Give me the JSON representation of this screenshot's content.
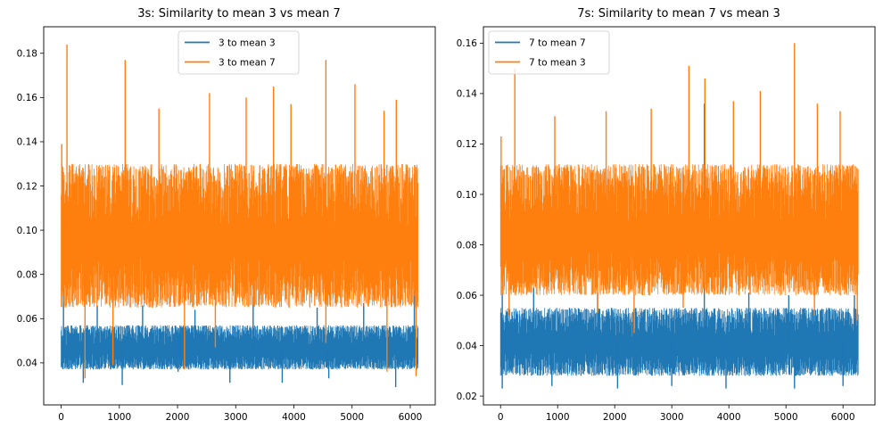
{
  "chart_data": [
    {
      "type": "line",
      "title": "3s: Similarity to mean 3 vs mean 7",
      "xlabel": "",
      "ylabel": "",
      "xlim": [
        -300,
        6430
      ],
      "ylim": [
        0.021,
        0.192
      ],
      "xticks": [
        0,
        1000,
        2000,
        3000,
        4000,
        5000,
        6000
      ],
      "xtick_labels": [
        "0",
        "1000",
        "2000",
        "3000",
        "4000",
        "5000",
        "6000"
      ],
      "yticks": [
        0.04,
        0.06,
        0.08,
        0.1,
        0.12,
        0.14,
        0.16,
        0.18
      ],
      "ytick_labels": [
        "0.04",
        "0.06",
        "0.08",
        "0.10",
        "0.12",
        "0.14",
        "0.16",
        "0.18"
      ],
      "grid": false,
      "legend_position": "upper-center",
      "n_points": 6131,
      "series": [
        {
          "name": "3 to mean 3",
          "color": "#1f77b4",
          "band": {
            "low": 0.037,
            "high": 0.057
          },
          "spikes_low": [
            [
              380,
              0.031
            ],
            [
              1050,
              0.03
            ],
            [
              2010,
              0.036
            ],
            [
              2900,
              0.031
            ],
            [
              3800,
              0.031
            ],
            [
              4600,
              0.033
            ],
            [
              5750,
              0.029
            ]
          ],
          "spikes_high": [
            [
              40,
              0.109
            ],
            [
              620,
              0.066
            ],
            [
              1400,
              0.066
            ],
            [
              2300,
              0.064
            ],
            [
              3300,
              0.07
            ],
            [
              4400,
              0.065
            ],
            [
              5200,
              0.067
            ],
            [
              6070,
              0.073
            ]
          ]
        },
        {
          "name": "3 to mean 7",
          "color": "#ff7f0e",
          "band": {
            "low": 0.065,
            "high": 0.13
          },
          "spikes_low": [
            [
              410,
              0.033
            ],
            [
              890,
              0.039
            ],
            [
              2120,
              0.037
            ],
            [
              2650,
              0.047
            ],
            [
              4550,
              0.049
            ],
            [
              5600,
              0.036
            ],
            [
              6100,
              0.034
            ]
          ],
          "spikes_high": [
            [
              10,
              0.139
            ],
            [
              100,
              0.184
            ],
            [
              1100,
              0.177
            ],
            [
              1680,
              0.155
            ],
            [
              2550,
              0.162
            ],
            [
              3180,
              0.16
            ],
            [
              3650,
              0.165
            ],
            [
              3950,
              0.157
            ],
            [
              4550,
              0.177
            ],
            [
              5050,
              0.166
            ],
            [
              5550,
              0.154
            ],
            [
              5760,
              0.159
            ]
          ]
        }
      ]
    },
    {
      "type": "line",
      "title": "7s: Similarity to mean 7 vs mean 3",
      "xlabel": "",
      "ylabel": "",
      "xlim": [
        -300,
        6560
      ],
      "ylim": [
        0.0165,
        0.1665
      ],
      "xticks": [
        0,
        1000,
        2000,
        3000,
        4000,
        5000,
        6000
      ],
      "xtick_labels": [
        "0",
        "1000",
        "2000",
        "3000",
        "4000",
        "5000",
        "6000"
      ],
      "yticks": [
        0.02,
        0.04,
        0.06,
        0.08,
        0.1,
        0.12,
        0.14,
        0.16
      ],
      "ytick_labels": [
        "0.02",
        "0.04",
        "0.06",
        "0.08",
        "0.10",
        "0.12",
        "0.14",
        "0.16"
      ],
      "grid": false,
      "legend_position": "upper-left",
      "n_points": 6265,
      "series": [
        {
          "name": "7 to mean 7",
          "color": "#1f77b4",
          "band": {
            "low": 0.028,
            "high": 0.055
          },
          "spikes_low": [
            [
              30,
              0.023
            ],
            [
              900,
              0.024
            ],
            [
              2050,
              0.023
            ],
            [
              3000,
              0.024
            ],
            [
              3950,
              0.023
            ],
            [
              5150,
              0.023
            ],
            [
              6000,
              0.024
            ]
          ],
          "spikes_high": [
            [
              30,
              0.068
            ],
            [
              580,
              0.063
            ],
            [
              1700,
              0.061
            ],
            [
              3570,
              0.136
            ],
            [
              4350,
              0.061
            ],
            [
              5050,
              0.06
            ],
            [
              6200,
              0.06
            ]
          ]
        },
        {
          "name": "7 to mean 3",
          "color": "#ff7f0e",
          "band": {
            "low": 0.06,
            "high": 0.112
          },
          "spikes_low": [
            [
              150,
              0.052
            ],
            [
              1700,
              0.053
            ],
            [
              2340,
              0.045
            ],
            [
              3200,
              0.055
            ],
            [
              5500,
              0.052
            ],
            [
              6250,
              0.05
            ]
          ],
          "spikes_high": [
            [
              10,
              0.123
            ],
            [
              250,
              0.15
            ],
            [
              950,
              0.131
            ],
            [
              1850,
              0.133
            ],
            [
              2640,
              0.134
            ],
            [
              3300,
              0.151
            ],
            [
              3580,
              0.146
            ],
            [
              4080,
              0.137
            ],
            [
              4550,
              0.141
            ],
            [
              5150,
              0.16
            ],
            [
              5550,
              0.136
            ],
            [
              5950,
              0.133
            ]
          ]
        }
      ]
    }
  ]
}
